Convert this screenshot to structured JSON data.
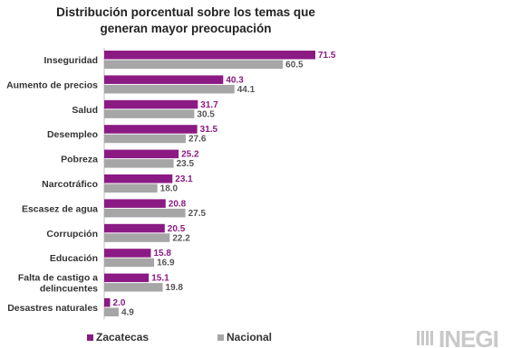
{
  "chart_data": {
    "type": "bar",
    "orientation": "horizontal",
    "title": "Distribución porcentual sobre los temas que generan mayor preocupación",
    "title_lines": [
      "Distribución porcentual sobre los temas que",
      "generan mayor preocupación"
    ],
    "categories": [
      "Inseguridad",
      "Aumento de precios",
      "Salud",
      "Desempleo",
      "Pobreza",
      "Narcotráfico",
      "Escasez de agua",
      "Corrupción",
      "Educación",
      "Falta de castigo a delincuentes",
      "Desastres naturales"
    ],
    "category_lines": [
      [
        "Inseguridad"
      ],
      [
        "Aumento de precios"
      ],
      [
        "Salud"
      ],
      [
        "Desempleo"
      ],
      [
        "Pobreza"
      ],
      [
        "Narcotráfico"
      ],
      [
        "Escasez de agua"
      ],
      [
        "Corrupción"
      ],
      [
        "Educación"
      ],
      [
        "Falta de castigo a",
        "delincuentes"
      ],
      [
        "Desastres naturales"
      ]
    ],
    "series": [
      {
        "name": "Zacatecas",
        "color": "#8b1a84",
        "values": [
          71.5,
          40.3,
          31.7,
          31.5,
          25.2,
          23.1,
          20.8,
          20.5,
          15.8,
          15.1,
          2.0
        ]
      },
      {
        "name": "Nacional",
        "color": "#a6a6a6",
        "values": [
          60.5,
          44.1,
          30.5,
          27.6,
          23.5,
          18.0,
          27.5,
          22.2,
          16.9,
          19.8,
          4.9
        ]
      }
    ],
    "value_labels": {
      "Zacatecas": [
        "71.5",
        "40.3",
        "31.7",
        "31.5",
        "25.2",
        "23.1",
        "20.8",
        "20.5",
        "15.8",
        "15.1",
        "2.0"
      ],
      "Nacional": [
        "60.5",
        "44.1",
        "30.5",
        "27.6",
        "23.5",
        "18.0",
        "27.5",
        "22.2",
        "16.9",
        "19.8",
        "4.9"
      ]
    },
    "xlim": [
      0,
      80
    ],
    "grid": false,
    "legend_position": "bottom-left"
  },
  "legend": {
    "items": [
      "Zacatecas",
      "Nacional"
    ]
  },
  "logo": {
    "text": "INEGI"
  }
}
